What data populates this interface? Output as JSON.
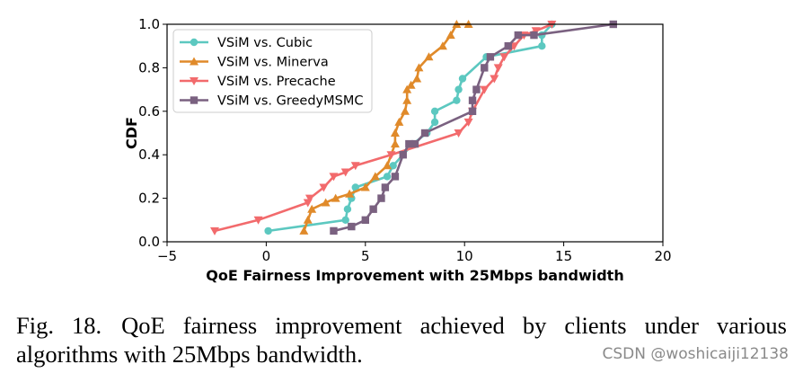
{
  "chart_data": {
    "type": "line",
    "title": "",
    "xlabel": "QoE Fairness Improvement with 25Mbps bandwidth",
    "ylabel": "CDF",
    "xlim": [
      -5,
      20
    ],
    "ylim": [
      0.0,
      1.0
    ],
    "xticks": [
      -5,
      0,
      5,
      10,
      15,
      20
    ],
    "yticks": [
      "0.0",
      "0.2",
      "0.4",
      "0.6",
      "0.8",
      "1.0"
    ],
    "legend_position": "top-left",
    "series": [
      {
        "name": "VSiM vs. Cubic",
        "color": "#5cc8c0",
        "marker": "circle",
        "x": [
          0.1,
          4.0,
          4.1,
          4.3,
          4.5,
          6.1,
          6.4,
          7.4,
          8.1,
          8.5,
          8.5,
          9.6,
          9.7,
          9.9,
          11.1,
          13.9,
          13.9,
          14.4
        ],
        "y": [
          0.05,
          0.1,
          0.15,
          0.2,
          0.25,
          0.3,
          0.35,
          0.45,
          0.5,
          0.55,
          0.6,
          0.65,
          0.7,
          0.75,
          0.85,
          0.9,
          0.95,
          1.0
        ]
      },
      {
        "name": "VSiM vs. Minerva",
        "color": "#e08a2a",
        "marker": "triangle-up",
        "x": [
          1.9,
          2.1,
          2.3,
          3.0,
          3.5,
          4.2,
          5.0,
          5.5,
          6.1,
          6.5,
          6.5,
          6.7,
          7.0,
          7.1,
          7.1,
          7.3,
          7.6,
          7.7,
          8.2,
          8.9,
          9.3,
          9.6,
          10.2
        ],
        "y": [
          0.05,
          0.1,
          0.15,
          0.18,
          0.2,
          0.22,
          0.25,
          0.3,
          0.35,
          0.45,
          0.5,
          0.55,
          0.6,
          0.65,
          0.7,
          0.72,
          0.75,
          0.8,
          0.85,
          0.9,
          0.95,
          1.0,
          1.0
        ]
      },
      {
        "name": "VSiM vs. Precache",
        "color": "#f26a6c",
        "marker": "triangle-down",
        "x": [
          -2.6,
          -0.4,
          2.1,
          2.2,
          2.9,
          3.4,
          4.0,
          4.5,
          6.3,
          9.7,
          10.2,
          10.4,
          11.0,
          11.5,
          11.7,
          12.0,
          12.5,
          13.0,
          13.6,
          14.4
        ],
        "y": [
          0.05,
          0.1,
          0.18,
          0.2,
          0.25,
          0.3,
          0.32,
          0.35,
          0.4,
          0.5,
          0.55,
          0.6,
          0.7,
          0.75,
          0.8,
          0.85,
          0.9,
          0.95,
          0.97,
          1.0
        ]
      },
      {
        "name": "VSiM vs. GreedyMSMC",
        "color": "#7a6180",
        "marker": "square",
        "x": [
          3.4,
          4.3,
          5.0,
          5.4,
          5.8,
          6.0,
          6.5,
          6.9,
          7.2,
          7.5,
          8.0,
          10.4,
          10.4,
          10.6,
          11.0,
          11.3,
          12.2,
          12.7,
          13.5,
          17.5
        ],
        "y": [
          0.05,
          0.07,
          0.1,
          0.15,
          0.2,
          0.25,
          0.3,
          0.4,
          0.45,
          0.45,
          0.5,
          0.6,
          0.65,
          0.7,
          0.8,
          0.85,
          0.9,
          0.95,
          0.95,
          1.0
        ]
      }
    ]
  },
  "caption": {
    "label": "Fig. 18.",
    "text": "QoE fairness improvement achieved by clients under various algorithms with 25Mbps bandwidth."
  },
  "watermark": "CSDN @woshicaiji12138"
}
